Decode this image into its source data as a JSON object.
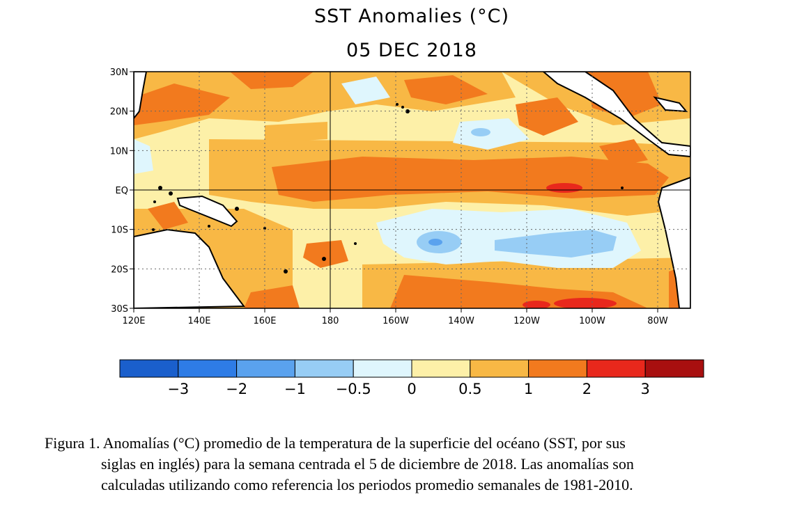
{
  "title": "SST Anomalies (°C)",
  "date": "05 DEC 2018",
  "map": {
    "lat_labels": [
      "30N",
      "20N",
      "10N",
      "EQ",
      "10S",
      "20S",
      "30S"
    ],
    "lon_labels": [
      "120E",
      "140E",
      "160E",
      "180",
      "160W",
      "140W",
      "120W",
      "100W",
      "80W"
    ],
    "projection_extent": {
      "lon_min": 120,
      "lon_max": 290,
      "lat_min": -30,
      "lat_max": 30
    },
    "grid": "dotted every 10 degrees; solid reference lines at EQ and 180"
  },
  "colorbar": {
    "colors": [
      "#1a5fcc",
      "#2e7ce6",
      "#5aa2ee",
      "#97cdf5",
      "#dff6fd",
      "#fdf0a8",
      "#f8b845",
      "#f27a1e",
      "#e8281c",
      "#a80f0f"
    ],
    "tick_labels": [
      "−3",
      "−2",
      "−1",
      "−0.5",
      "0",
      "0.5",
      "1",
      "2",
      "3"
    ]
  },
  "caption": {
    "line1": "Figura 1. Anomalías (°C) promedio de la temperatura de la superficie del océano (SST, por sus",
    "line2": "siglas en inglés) para la semana centrada el 5 de diciembre de 2018. Las anomalías son",
    "line3": "calculadas utilizando como referencia los periodos promedio semanales de 1981-2010."
  }
}
